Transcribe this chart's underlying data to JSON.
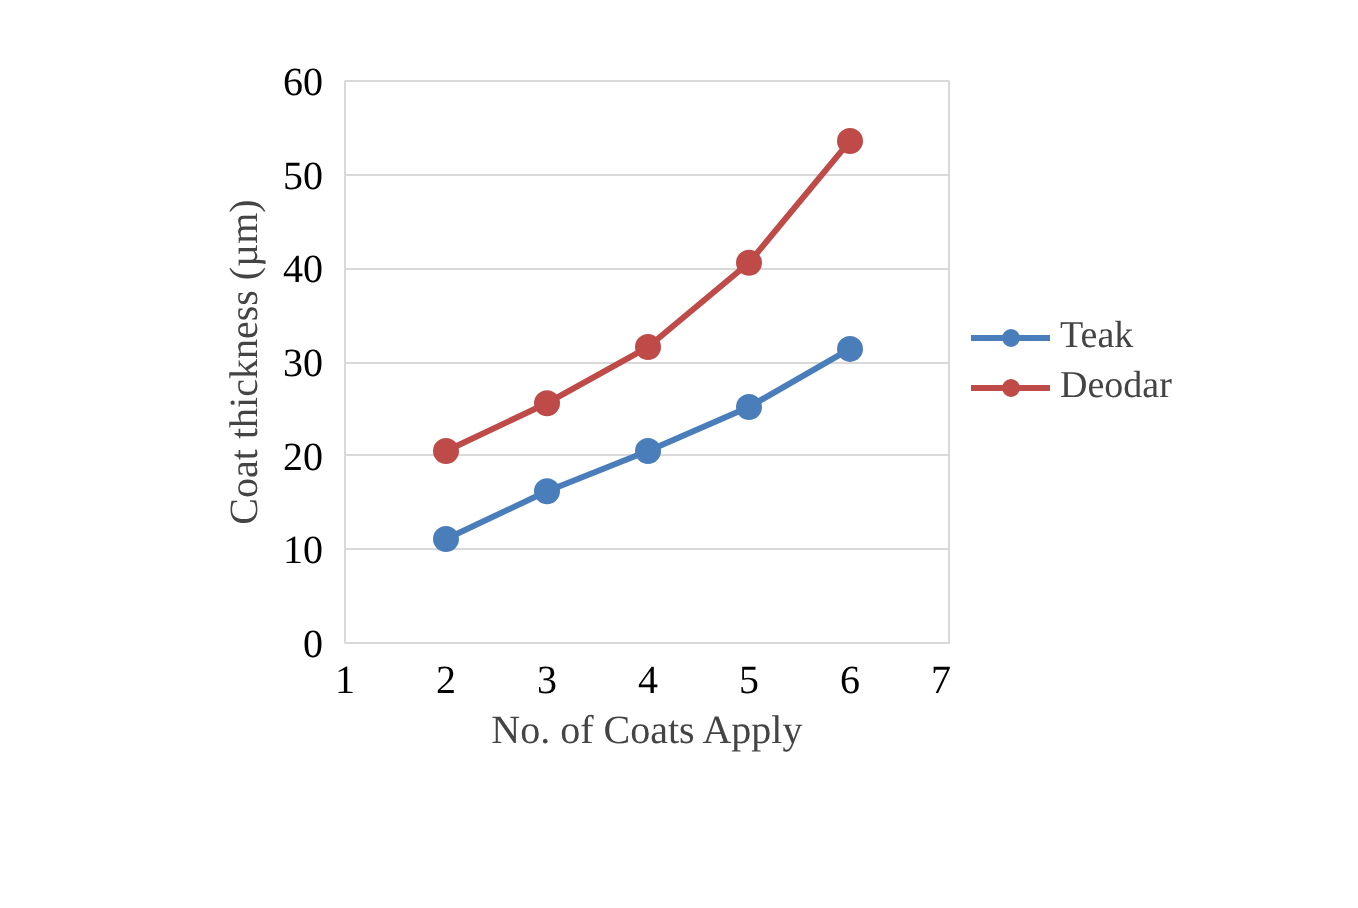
{
  "chart_data": {
    "type": "line",
    "xlabel": "No. of Coats Apply",
    "ylabel": "Coat thickness (µm)",
    "x": [
      2,
      3,
      4,
      5,
      6
    ],
    "series": [
      {
        "name": "Teak",
        "color": "#4a7ebb",
        "values": [
          11.1,
          16.2,
          20.5,
          25.2,
          31.4
        ]
      },
      {
        "name": "Deodar",
        "color": "#be4b48",
        "values": [
          20.5,
          25.6,
          31.6,
          40.6,
          53.6
        ]
      }
    ],
    "xlim": [
      1,
      7
    ],
    "xticks": [
      1,
      2,
      3,
      4,
      5,
      6,
      7
    ],
    "ylim": [
      0,
      60
    ],
    "yticks": [
      0,
      10,
      20,
      30,
      40,
      50,
      60
    ],
    "grid": "y",
    "legend": "right",
    "marker": "circle",
    "line_style": "solid"
  }
}
